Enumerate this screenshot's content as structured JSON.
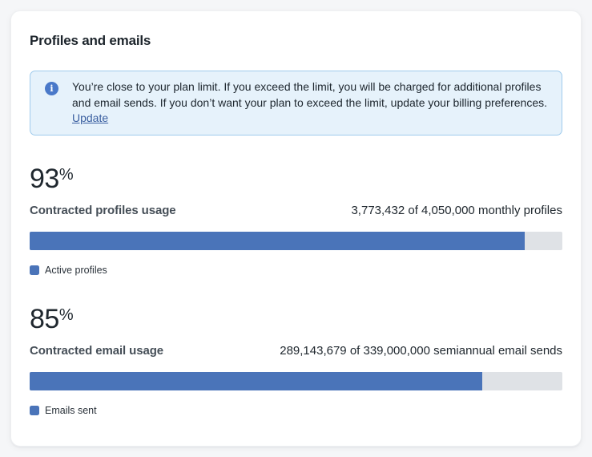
{
  "header": {
    "title": "Profiles and emails"
  },
  "alert": {
    "message": "You’re close to your plan limit. If you exceed the limit, you will be charged for additional profiles and email sends. If you don’t want your plan to exceed the limit, update your billing preferences. ",
    "link_label": "Update"
  },
  "usage_sections": [
    {
      "percent": "93",
      "percent_sign": "%",
      "label": "Contracted profiles usage",
      "detail": "3,773,432 of 4,050,000 monthly profiles",
      "used": 3773432,
      "total": 4050000,
      "bar_width": "93%",
      "legend": "Active profiles"
    },
    {
      "percent": "85",
      "percent_sign": "%",
      "label": "Contracted email usage",
      "detail": "289,143,679 of 339,000,000 semiannual email sends",
      "used": 289143679,
      "total": 339000000,
      "bar_width": "85%",
      "legend": "Emails sent"
    }
  ],
  "colors": {
    "bar_fill": "#4a74b9",
    "bar_track": "#dfe2e6",
    "alert_bg": "#e6f2fb",
    "alert_border": "#9fcbec",
    "info_icon": "#4a79c9",
    "link": "#3a5fa0"
  }
}
